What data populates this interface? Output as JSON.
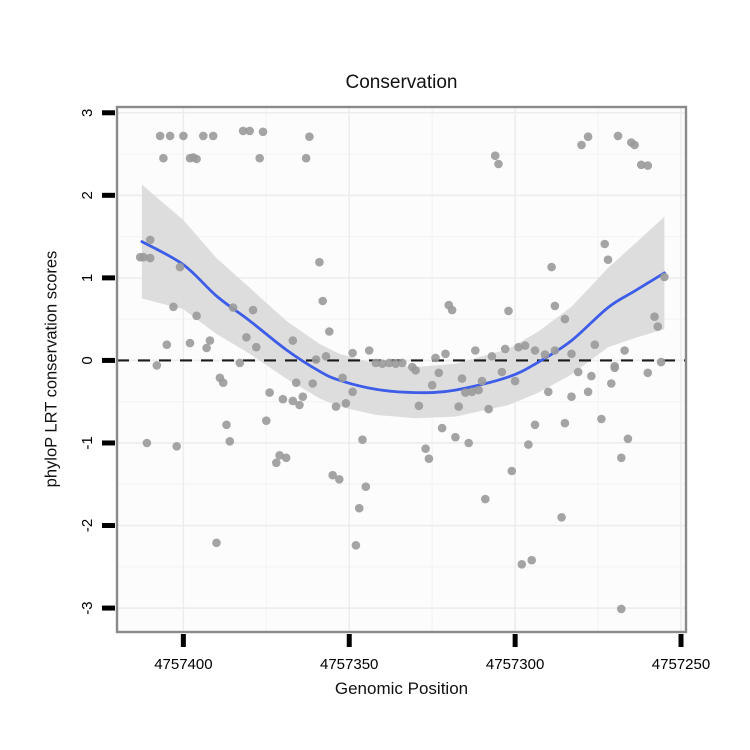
{
  "figure": {
    "title": "Conservation",
    "x_axis_label": "Genomic Position",
    "y_axis_label": "phyloP LRT conservation scores"
  },
  "chart_data": {
    "type": "scatter",
    "title": "Conservation",
    "xlabel": "Genomic Position",
    "ylabel": "phyloP LRT conservation scores",
    "x_reversed": true,
    "xlim": [
      4757420,
      4757248.5
    ],
    "ylim": [
      -3.29,
      3.07
    ],
    "x_ticks": [
      4757400,
      4757350,
      4757300,
      4757250
    ],
    "x_tick_labels": [
      "4757400",
      "4757350",
      "4757300",
      "4757250"
    ],
    "x_minor_ticks": [
      4757375,
      4757325,
      4757275
    ],
    "y_ticks": [
      3,
      2,
      1,
      0,
      -1,
      -2,
      -3
    ],
    "y_tick_labels": [
      "3",
      "2",
      "1",
      "0",
      "-1",
      "-2",
      "-3"
    ],
    "y_minor_ticks": [
      2.5,
      1.5,
      0.5,
      -0.5,
      -1.5,
      -2.5
    ],
    "reference_line": {
      "y": 0,
      "style": "dashed"
    },
    "grid": true,
    "legend_position": "none",
    "smooth_line": [
      [
        4757412.5,
        1.44
      ],
      [
        4757400,
        1.16
      ],
      [
        4757390,
        0.78
      ],
      [
        4757380,
        0.48
      ],
      [
        4757369,
        0.13
      ],
      [
        4757359,
        -0.13
      ],
      [
        4757353,
        -0.24
      ],
      [
        4757342,
        -0.35
      ],
      [
        4757330,
        -0.39
      ],
      [
        4757318,
        -0.36
      ],
      [
        4757302,
        -0.2
      ],
      [
        4757293,
        -0.02
      ],
      [
        4757283,
        0.24
      ],
      [
        4757272,
        0.64
      ],
      [
        4757264,
        0.84
      ],
      [
        4757255,
        1.06
      ]
    ],
    "ci_band_halfwidth": [
      [
        4757412.5,
        0.69
      ],
      [
        4757400,
        0.54
      ],
      [
        4757390,
        0.46
      ],
      [
        4757380,
        0.4
      ],
      [
        4757369,
        0.35
      ],
      [
        4757359,
        0.33
      ],
      [
        4757353,
        0.32
      ],
      [
        4757342,
        0.31
      ],
      [
        4757330,
        0.31
      ],
      [
        4757318,
        0.32
      ],
      [
        4757302,
        0.34
      ],
      [
        4757293,
        0.37
      ],
      [
        4757283,
        0.41
      ],
      [
        4757272,
        0.48
      ],
      [
        4757264,
        0.57
      ],
      [
        4757255,
        0.68
      ]
    ],
    "points": [
      [
        4757407,
        2.72
      ],
      [
        4757404,
        2.72
      ],
      [
        4757400,
        2.72
      ],
      [
        4757394,
        2.72
      ],
      [
        4757391,
        2.72
      ],
      [
        4757382,
        2.78
      ],
      [
        4757380,
        2.78
      ],
      [
        4757376,
        2.77
      ],
      [
        4757362,
        2.71
      ],
      [
        4757306,
        2.48
      ],
      [
        4757305,
        2.38
      ],
      [
        4757280,
        2.61
      ],
      [
        4757278,
        2.71
      ],
      [
        4757269,
        2.72
      ],
      [
        4757265,
        2.64
      ],
      [
        4757264,
        2.61
      ],
      [
        4757262,
        2.37
      ],
      [
        4757260,
        2.36
      ],
      [
        4757406,
        2.45
      ],
      [
        4757398,
        2.45
      ],
      [
        4757397,
        2.46
      ],
      [
        4757396,
        2.44
      ],
      [
        4757377,
        2.45
      ],
      [
        4757363,
        2.45
      ],
      [
        4757413,
        1.25
      ],
      [
        4757412,
        1.25
      ],
      [
        4757410,
        1.46
      ],
      [
        4757410,
        1.24
      ],
      [
        4757401,
        1.13
      ],
      [
        4757359,
        1.19
      ],
      [
        4757289,
        1.13
      ],
      [
        4757273,
        1.41
      ],
      [
        4757272,
        1.22
      ],
      [
        4757255,
        1.01
      ],
      [
        4757403,
        0.65
      ],
      [
        4757396,
        0.54
      ],
      [
        4757385,
        0.64
      ],
      [
        4757379,
        0.61
      ],
      [
        4757358,
        0.72
      ],
      [
        4757356,
        0.35
      ],
      [
        4757320,
        0.67
      ],
      [
        4757319,
        0.61
      ],
      [
        4757302,
        0.6
      ],
      [
        4757288,
        0.66
      ],
      [
        4757285,
        0.5
      ],
      [
        4757258,
        0.53
      ],
      [
        4757257,
        0.41
      ],
      [
        4757405,
        0.19
      ],
      [
        4757398,
        0.21
      ],
      [
        4757393,
        0.15
      ],
      [
        4757392,
        0.24
      ],
      [
        4757381,
        0.28
      ],
      [
        4757378,
        0.16
      ],
      [
        4757367,
        0.24
      ],
      [
        4757357,
        0.05
      ],
      [
        4757349,
        0.09
      ],
      [
        4757344,
        0.12
      ],
      [
        4757360,
        0.01
      ],
      [
        4757321,
        0.08
      ],
      [
        4757312,
        0.12
      ],
      [
        4757307,
        0.05
      ],
      [
        4757303,
        0.14
      ],
      [
        4757299,
        0.16
      ],
      [
        4757297,
        0.18
      ],
      [
        4757294,
        0.12
      ],
      [
        4757291,
        0.07
      ],
      [
        4757288,
        0.12
      ],
      [
        4757283,
        0.08
      ],
      [
        4757276,
        0.19
      ],
      [
        4757267,
        0.12
      ],
      [
        4757408,
        -0.06
      ],
      [
        4757383,
        -0.03
      ],
      [
        4757342,
        -0.03
      ],
      [
        4757340,
        -0.04
      ],
      [
        4757338,
        -0.03
      ],
      [
        4757336,
        -0.04
      ],
      [
        4757334,
        -0.03
      ],
      [
        4757331,
        -0.08
      ],
      [
        4757330,
        -0.12
      ],
      [
        4757324,
        0.03
      ],
      [
        4757323,
        -0.15
      ],
      [
        4757270,
        -0.07
      ],
      [
        4757256,
        -0.02
      ],
      [
        4757389,
        -0.21
      ],
      [
        4757388,
        -0.27
      ],
      [
        4757374,
        -0.39
      ],
      [
        4757370,
        -0.47
      ],
      [
        4757367,
        -0.49
      ],
      [
        4757365,
        -0.54
      ],
      [
        4757364,
        -0.44
      ],
      [
        4757366,
        -0.27
      ],
      [
        4757361,
        -0.28
      ],
      [
        4757354,
        -0.56
      ],
      [
        4757352,
        -0.21
      ],
      [
        4757351,
        -0.52
      ],
      [
        4757349,
        -0.38
      ],
      [
        4757325,
        -0.3
      ],
      [
        4757316,
        -0.22
      ],
      [
        4757315,
        -0.39
      ],
      [
        4757313,
        -0.38
      ],
      [
        4757311,
        -0.36
      ],
      [
        4757310,
        -0.25
      ],
      [
        4757304,
        -0.14
      ],
      [
        4757300,
        -0.25
      ],
      [
        4757290,
        -0.38
      ],
      [
        4757283,
        -0.44
      ],
      [
        4757329,
        -0.55
      ],
      [
        4757317,
        -0.56
      ],
      [
        4757308,
        -0.59
      ],
      [
        4757281,
        -0.14
      ],
      [
        4757278,
        -0.38
      ],
      [
        4757277,
        -0.19
      ],
      [
        4757271,
        -0.28
      ],
      [
        4757270,
        -0.09
      ],
      [
        4757260,
        -0.15
      ],
      [
        4757375,
        -0.73
      ],
      [
        4757387,
        -0.78
      ],
      [
        4757386,
        -0.98
      ],
      [
        4757411,
        -1.0
      ],
      [
        4757402,
        -1.04
      ],
      [
        4757371,
        -1.15
      ],
      [
        4757369,
        -1.18
      ],
      [
        4757372,
        -1.24
      ],
      [
        4757346,
        -0.96
      ],
      [
        4757322,
        -0.82
      ],
      [
        4757318,
        -0.93
      ],
      [
        4757314,
        -1.0
      ],
      [
        4757327,
        -1.07
      ],
      [
        4757326,
        -1.19
      ],
      [
        4757294,
        -0.78
      ],
      [
        4757285,
        -0.76
      ],
      [
        4757274,
        -0.71
      ],
      [
        4757296,
        -1.02
      ],
      [
        4757266,
        -0.95
      ],
      [
        4757268,
        -1.18
      ],
      [
        4757355,
        -1.39
      ],
      [
        4757353,
        -1.44
      ],
      [
        4757345,
        -1.53
      ],
      [
        4757347,
        -1.79
      ],
      [
        4757301,
        -1.34
      ],
      [
        4757309,
        -1.68
      ],
      [
        4757286,
        -1.9
      ],
      [
        4757390,
        -2.21
      ],
      [
        4757348,
        -2.24
      ],
      [
        4757298,
        -2.47
      ],
      [
        4757295,
        -2.42
      ],
      [
        4757268,
        -3.01
      ]
    ],
    "colors": {
      "point": "#9A9A9A",
      "smooth_line": "#3D5DE8",
      "ci_band": "#DBDBDB",
      "reference_line": "#1A1A1A",
      "panel_background": "#FCFCFC",
      "panel_border": "#8A8A8A",
      "grid_major": "#EDEDED",
      "grid_minor": "#F5F5F5",
      "tick": "#000000",
      "text": "#000000"
    }
  }
}
